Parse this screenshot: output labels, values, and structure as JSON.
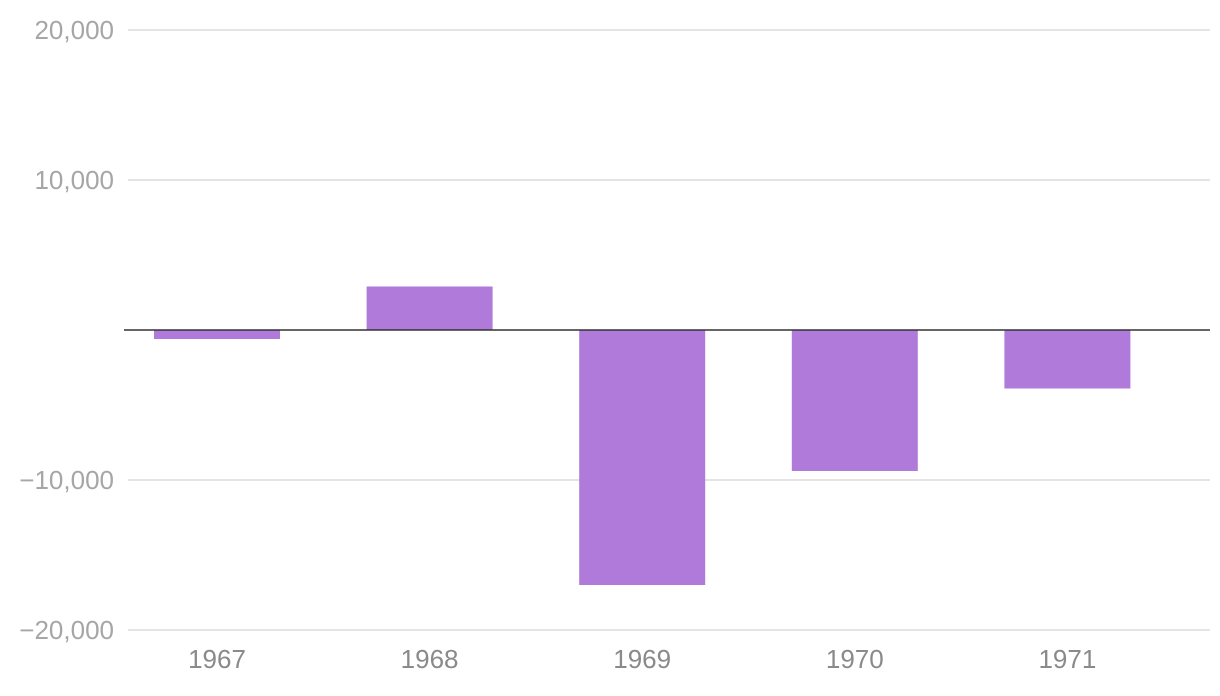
{
  "chart_data": {
    "type": "bar",
    "title": "",
    "xlabel": "",
    "ylabel": "",
    "categories": [
      "1967",
      "1968",
      "1969",
      "1970",
      "1971"
    ],
    "values": [
      -600,
      2900,
      -17000,
      -9400,
      -3900
    ],
    "ylim": [
      -20000,
      20000
    ],
    "yticks": [
      20000,
      10000,
      -10000,
      -20000
    ],
    "ytick_labels": [
      "20,000",
      "10,000",
      "−10,000",
      "−20,000"
    ],
    "grid": true,
    "legend": "none",
    "colors": {
      "bar": "#b07ada",
      "grid": "#dcdcdc",
      "zero_line": "#333333",
      "y_tick_text": "#a6a6a6",
      "x_tick_text": "#8a8a8a"
    }
  }
}
